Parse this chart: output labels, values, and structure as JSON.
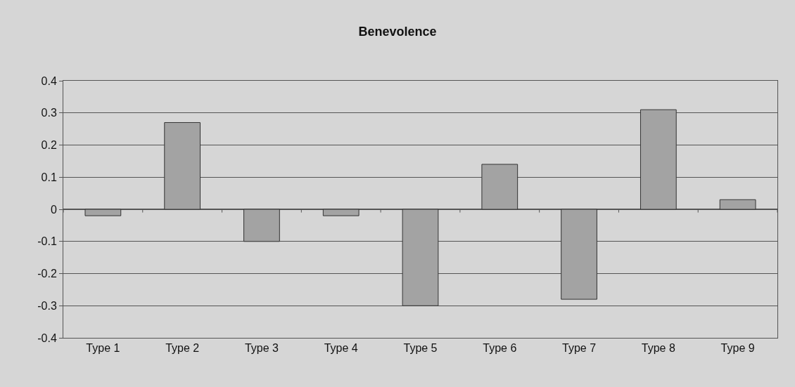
{
  "chart_data": {
    "type": "bar",
    "title": "Benevolence",
    "categories": [
      "Type 1",
      "Type 2",
      "Type 3",
      "Type 4",
      "Type 5",
      "Type 6",
      "Type 7",
      "Type 8",
      "Type 9"
    ],
    "values": [
      -0.02,
      0.27,
      -0.1,
      -0.02,
      -0.3,
      0.14,
      -0.28,
      0.31,
      0.03
    ],
    "color": "#a3a3a3",
    "ylim": [
      -0.4,
      0.4
    ],
    "yticks": [
      -0.4,
      -0.3,
      -0.2,
      -0.1,
      0,
      0.1,
      0.2,
      0.3,
      0.4
    ],
    "grid": "y"
  }
}
